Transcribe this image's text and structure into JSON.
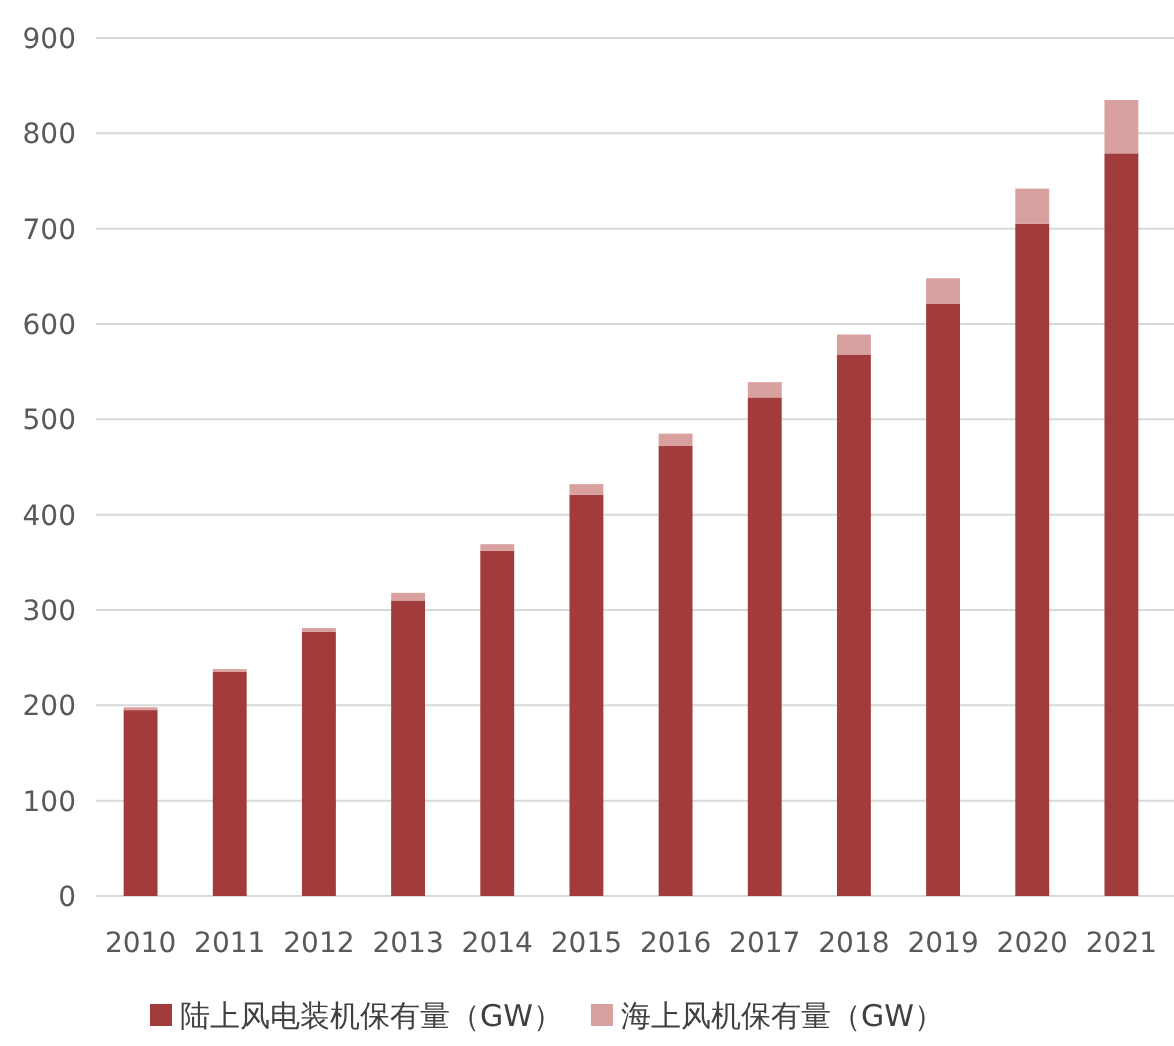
{
  "chart_data": {
    "type": "bar",
    "stacked": true,
    "categories": [
      "2010",
      "2011",
      "2012",
      "2013",
      "2014",
      "2015",
      "2016",
      "2017",
      "2018",
      "2019",
      "2020",
      "2021"
    ],
    "series": [
      {
        "name": "陆上风电装机保有量（GW）",
        "color": "#a23b3b",
        "values": [
          195,
          235,
          277,
          310,
          362,
          421,
          472,
          523,
          568,
          621,
          705,
          779
        ]
      },
      {
        "name": "海上风机保有量（GW）",
        "color": "#d9a0a0",
        "values": [
          3,
          3,
          4,
          8,
          7,
          11,
          13,
          16,
          21,
          27,
          37,
          56
        ]
      }
    ],
    "ylim": [
      0,
      900
    ],
    "yticks": [
      0,
      100,
      200,
      300,
      400,
      500,
      600,
      700,
      800,
      900
    ],
    "grid": "y",
    "legend": "bottom"
  }
}
